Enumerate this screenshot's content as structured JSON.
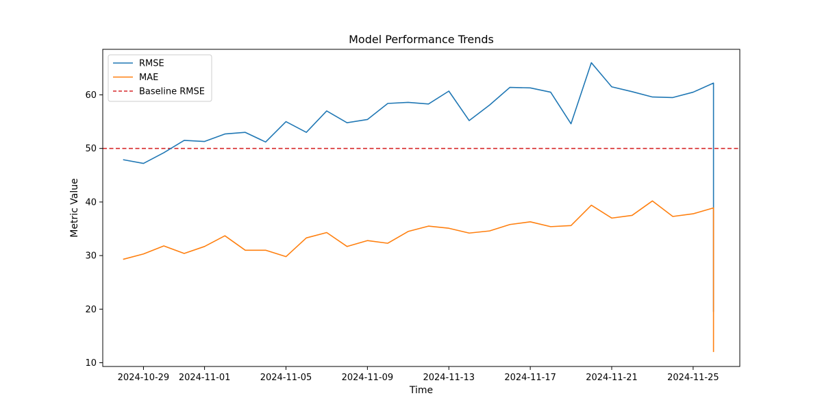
{
  "chart_data": {
    "type": "line",
    "title": "Model Performance Trends",
    "xlabel": "Time",
    "ylabel": "Metric Value",
    "x": [
      "2024-10-28",
      "2024-10-29",
      "2024-10-30",
      "2024-10-31",
      "2024-11-01",
      "2024-11-02",
      "2024-11-03",
      "2024-11-04",
      "2024-11-05",
      "2024-11-06",
      "2024-11-07",
      "2024-11-08",
      "2024-11-09",
      "2024-11-10",
      "2024-11-11",
      "2024-11-12",
      "2024-11-13",
      "2024-11-14",
      "2024-11-15",
      "2024-11-16",
      "2024-11-17",
      "2024-11-18",
      "2024-11-19",
      "2024-11-20",
      "2024-11-21",
      "2024-11-22",
      "2024-11-23",
      "2024-11-24",
      "2024-11-25",
      "2024-11-26"
    ],
    "series": [
      {
        "name": "RMSE",
        "color": "#1f77b4",
        "values": [
          47.9,
          47.2,
          49.2,
          51.5,
          51.3,
          52.7,
          53.0,
          51.2,
          55.0,
          53.0,
          57.0,
          54.8,
          55.4,
          58.4,
          58.6,
          58.3,
          60.7,
          55.2,
          58.1,
          61.4,
          61.3,
          60.5,
          54.6,
          66.0,
          61.5,
          60.6,
          59.6,
          59.5,
          60.5,
          62.2
        ],
        "end_drop_value": 19.5
      },
      {
        "name": "MAE",
        "color": "#ff7f0e",
        "values": [
          29.3,
          30.3,
          31.8,
          30.4,
          31.7,
          33.7,
          31.0,
          31.0,
          29.8,
          33.3,
          34.3,
          31.7,
          32.8,
          32.3,
          34.5,
          35.5,
          35.1,
          34.2,
          34.6,
          35.8,
          36.3,
          35.4,
          35.6,
          39.4,
          37.0,
          37.5,
          40.2,
          37.3,
          37.8,
          38.9
        ],
        "end_drop_value": 12.0
      }
    ],
    "baseline": {
      "name": "Baseline RMSE",
      "value": 50,
      "color": "#d62728",
      "style": "dashed"
    },
    "xticks": [
      "2024-10-29",
      "2024-11-01",
      "2024-11-05",
      "2024-11-09",
      "2024-11-13",
      "2024-11-17",
      "2024-11-21",
      "2024-11-25"
    ],
    "yticks": [
      10,
      20,
      30,
      40,
      50,
      60
    ],
    "xlim": [
      "2024-10-27T00:00",
      "2024-11-27T07:00"
    ],
    "ylim": [
      9.3,
      68.5
    ],
    "legend_position": "top-left",
    "grid": false
  }
}
